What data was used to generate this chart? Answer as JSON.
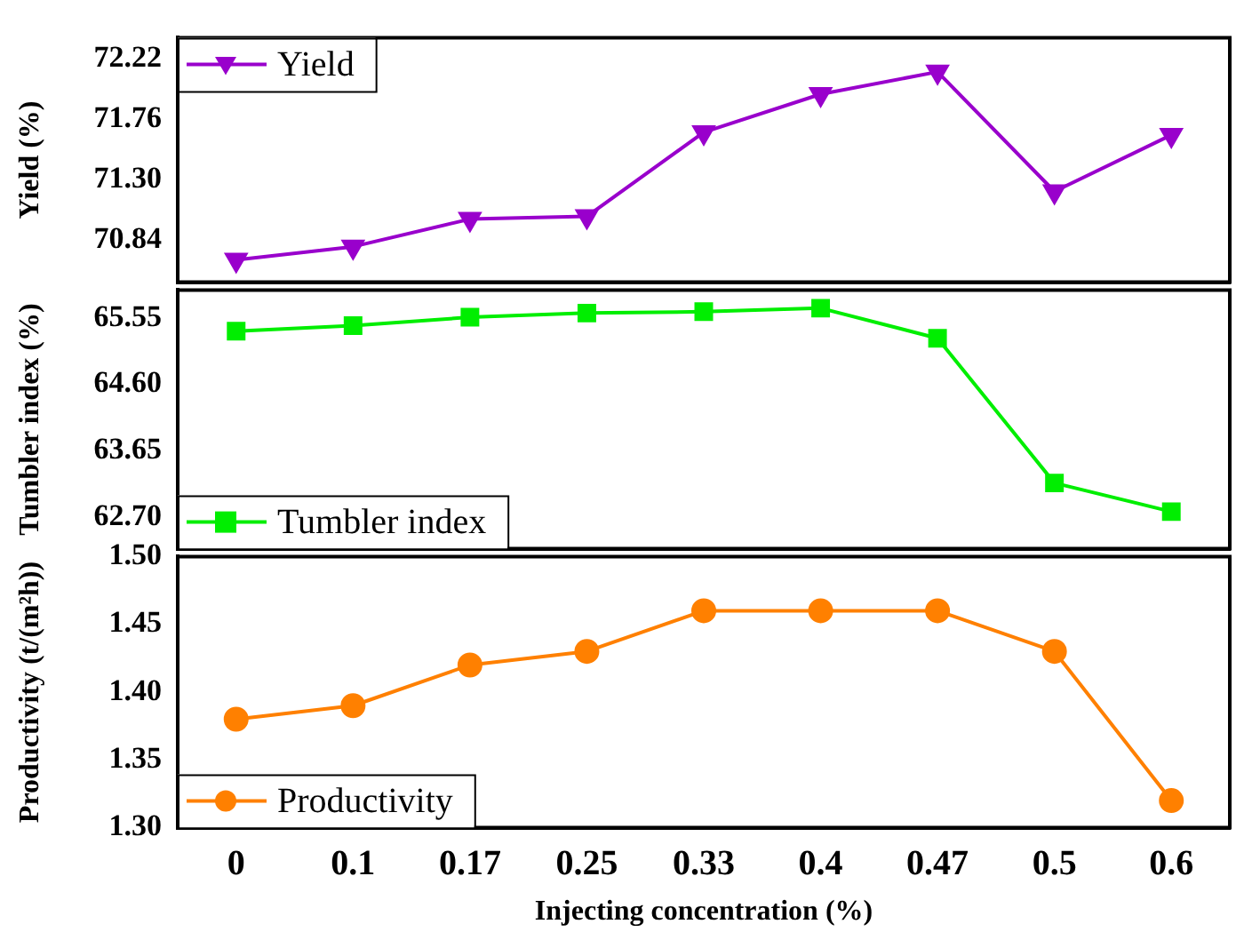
{
  "chart_data": [
    {
      "type": "line",
      "categories": [
        "0",
        "0.1",
        "0.17",
        "0.25",
        "0.33",
        "0.4",
        "0.47",
        "0.5",
        "0.6"
      ],
      "ylabel": "Yield (%)",
      "series": [
        {
          "name": "Yield",
          "color": "#9900cc",
          "values": [
            70.69,
            70.79,
            71.0,
            71.02,
            71.66,
            71.95,
            72.12,
            71.21,
            71.64
          ],
          "marker": "triangle"
        }
      ],
      "ylim": [
        70.52,
        72.38
      ],
      "yticks": [
        70.84,
        {
          "value": 71.3,
          "label": "71.30"
        },
        71.76,
        72.22
      ],
      "tick_labels": "y",
      "legend": "top left",
      "grid": false,
      "line_style": "solid"
    },
    {
      "type": "line",
      "categories": [
        "0",
        "0.1",
        "0.17",
        "0.25",
        "0.33",
        "0.4",
        "0.47",
        "0.5",
        "0.6"
      ],
      "ylabel": "Tumbler index (%)",
      "series": [
        {
          "name": "Tumbler index",
          "color": "#00ee00",
          "values": [
            65.36,
            65.44,
            65.56,
            65.62,
            65.64,
            65.69,
            65.26,
            63.19,
            62.78
          ],
          "marker": "square"
        }
      ],
      "ylim": [
        62.25,
        65.95
      ],
      "yticks": [
        {
          "value": 62.7,
          "label": "62.70"
        },
        63.65,
        {
          "value": 64.6,
          "label": "64.60"
        },
        65.55
      ],
      "tick_labels": "y",
      "legend": "bottom left",
      "grid": false,
      "line_style": "solid"
    },
    {
      "type": "line",
      "categories": [
        "0",
        "0.1",
        "0.17",
        "0.25",
        "0.33",
        "0.4",
        "0.47",
        "0.5",
        "0.6"
      ],
      "xlabel": "Injecting concentration (%)",
      "ylabel": "Productivity (t/(m²h))",
      "series": [
        {
          "name": "Productivity",
          "color": "#ff8000",
          "values": [
            1.38,
            1.39,
            1.42,
            1.43,
            1.46,
            1.46,
            1.46,
            1.43,
            1.32
          ],
          "marker": "circle"
        }
      ],
      "ylim": [
        1.3,
        1.5
      ],
      "yticks": [
        {
          "value": 1.3,
          "label": "1.30"
        },
        1.35,
        {
          "value": 1.4,
          "label": "1.40"
        },
        1.45,
        {
          "value": 1.5,
          "label": "1.50"
        }
      ],
      "legend": "bottom left",
      "grid": false,
      "line_style": "solid"
    }
  ]
}
